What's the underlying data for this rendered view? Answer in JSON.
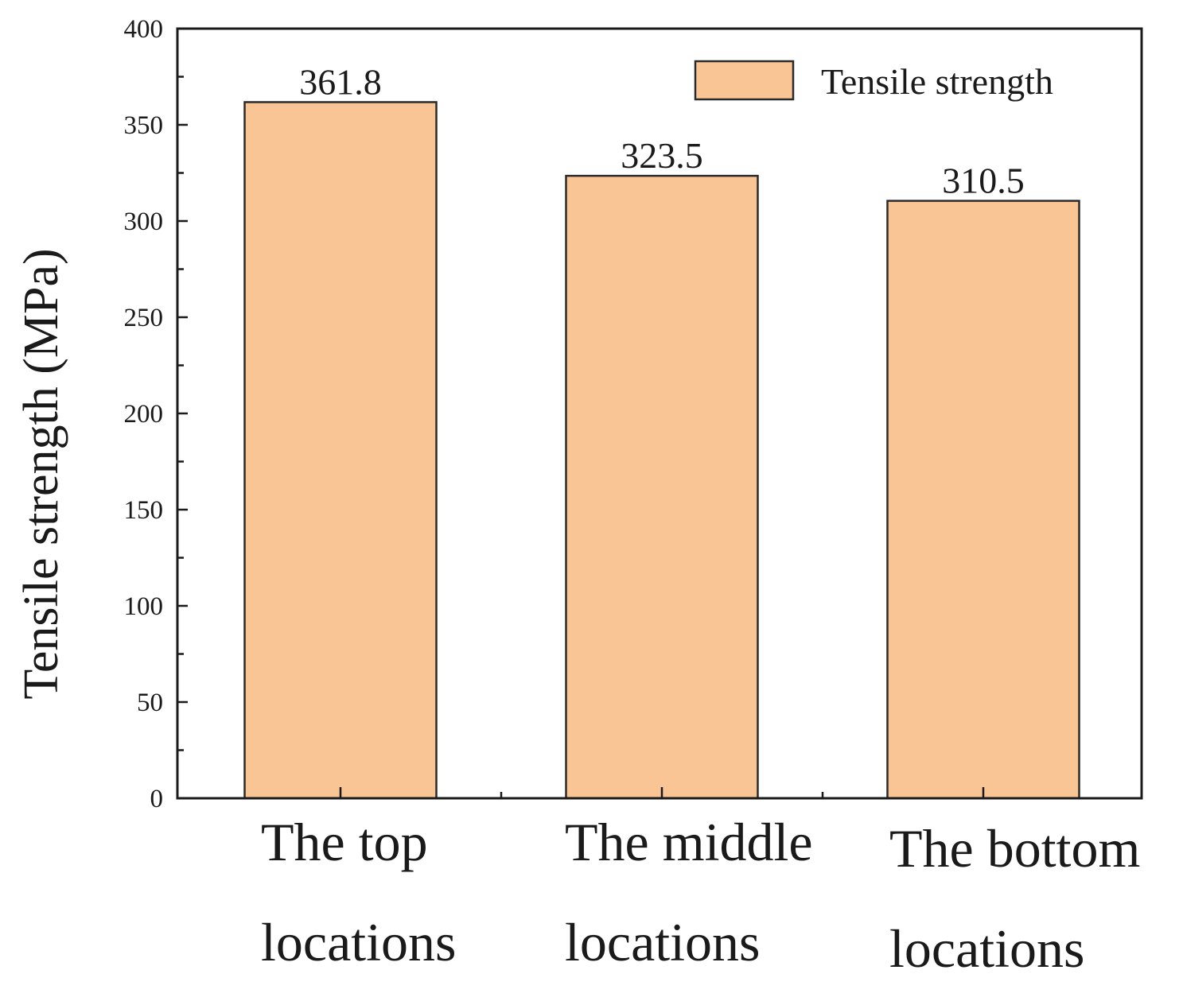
{
  "chart_data": {
    "type": "bar",
    "categories": [
      [
        "The top",
        "locations"
      ],
      [
        "The middle",
        "locations"
      ],
      [
        "The bottom",
        "locations"
      ]
    ],
    "series": [
      {
        "name": "Tensile strength",
        "values": [
          361.8,
          323.5,
          310.5
        ],
        "color": "#f9c594"
      }
    ],
    "data_labels": [
      "361.8",
      "323.5",
      "310.5"
    ],
    "title": "",
    "xlabel": "",
    "ylabel": "Tensile strength (MPa)",
    "ylim": [
      0,
      400
    ],
    "yticks": [
      0,
      50,
      100,
      150,
      200,
      250,
      300,
      350,
      400
    ],
    "grid": false,
    "legend": {
      "position": "top-right",
      "entries": [
        "Tensile strength"
      ]
    },
    "colors": {
      "bar_fill": "#f9c594",
      "bar_edge": "#2a2a2a",
      "axis": "#1a1a1a"
    }
  }
}
